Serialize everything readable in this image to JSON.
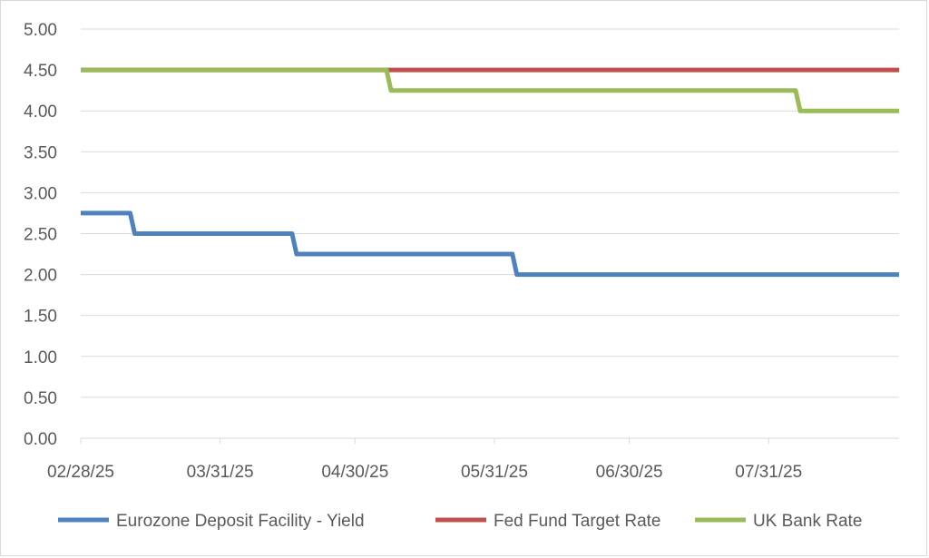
{
  "chart_data": {
    "type": "line",
    "title": "",
    "xlabel": "",
    "ylabel": "",
    "ylim": [
      0,
      5
    ],
    "y_ticks": [
      "0.00",
      "0.50",
      "1.00",
      "1.50",
      "2.00",
      "2.50",
      "3.00",
      "3.50",
      "4.00",
      "4.50",
      "5.00"
    ],
    "x_range": [
      "2025-02-28",
      "2025-08-29"
    ],
    "x_ticks": [
      {
        "date": "2025-02-28",
        "label": "02/28/25"
      },
      {
        "date": "2025-03-31",
        "label": "03/31/25"
      },
      {
        "date": "2025-04-30",
        "label": "04/30/25"
      },
      {
        "date": "2025-05-31",
        "label": "05/31/25"
      },
      {
        "date": "2025-06-30",
        "label": "06/30/25"
      },
      {
        "date": "2025-07-31",
        "label": "07/31/25"
      }
    ],
    "grid": "horizontal",
    "legend_position": "bottom",
    "series": [
      {
        "name": "Eurozone Deposit Facility - Yield",
        "color": "#4f81bd",
        "points": [
          {
            "x": "2025-02-28",
            "y": 2.75
          },
          {
            "x": "2025-03-11",
            "y": 2.75
          },
          {
            "x": "2025-03-12",
            "y": 2.5
          },
          {
            "x": "2025-04-16",
            "y": 2.5
          },
          {
            "x": "2025-04-17",
            "y": 2.25
          },
          {
            "x": "2025-06-04",
            "y": 2.25
          },
          {
            "x": "2025-06-05",
            "y": 2.0
          },
          {
            "x": "2025-08-29",
            "y": 2.0
          }
        ]
      },
      {
        "name": "Fed Fund Target Rate",
        "color": "#c0504d",
        "points": [
          {
            "x": "2025-02-28",
            "y": 4.5
          },
          {
            "x": "2025-08-29",
            "y": 4.5
          }
        ]
      },
      {
        "name": "UK Bank Rate",
        "color": "#9bbb59",
        "points": [
          {
            "x": "2025-02-28",
            "y": 4.5
          },
          {
            "x": "2025-05-07",
            "y": 4.5
          },
          {
            "x": "2025-05-08",
            "y": 4.25
          },
          {
            "x": "2025-08-06",
            "y": 4.25
          },
          {
            "x": "2025-08-07",
            "y": 4.0
          },
          {
            "x": "2025-08-29",
            "y": 4.0
          }
        ]
      }
    ]
  }
}
